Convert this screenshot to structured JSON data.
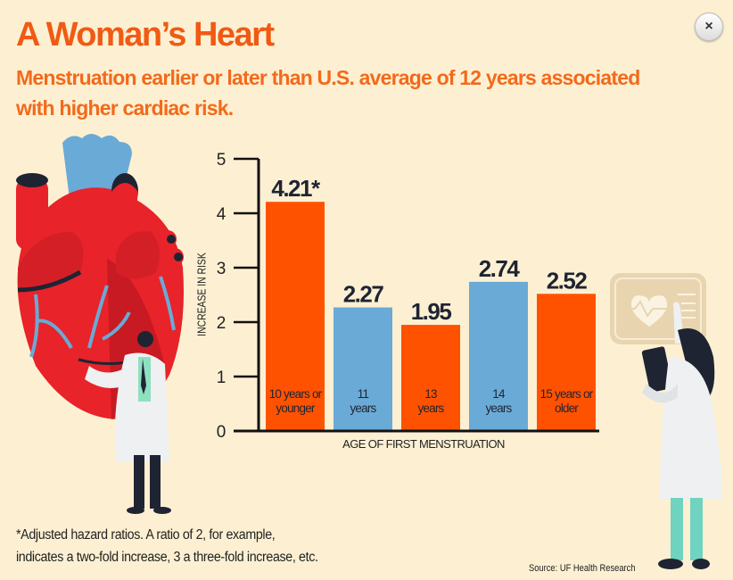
{
  "header": {
    "title": "A Woman’s Heart",
    "subtitle": "Menstruation earlier or later than U.S. average of 12 years associated with higher cardiac risk.",
    "close_label": "×"
  },
  "colors": {
    "orange": "#ff5200",
    "blue": "#6aaad6",
    "title": "#f05a14",
    "axis": "#111111",
    "value_text": "#1f2433"
  },
  "chart_data": {
    "type": "bar",
    "title": "",
    "xlabel": "AGE OF FIRST MENSTRUATION",
    "ylabel": "INCREASE IN RISK",
    "ylim": [
      0,
      5
    ],
    "yticks": [
      0,
      1,
      2,
      3,
      4,
      5
    ],
    "grid": false,
    "categories": [
      "10 years or younger",
      "11 years",
      "13 years",
      "14 years",
      "15 years or older"
    ],
    "category_lines": [
      [
        "10 years or",
        "younger"
      ],
      [
        "11",
        "years"
      ],
      [
        "13",
        "years"
      ],
      [
        "14",
        "years"
      ],
      [
        "15 years or",
        "older"
      ]
    ],
    "values": [
      4.21,
      2.27,
      1.95,
      2.74,
      2.52
    ],
    "data_labels": [
      "4.21*",
      "2.27",
      "1.95",
      "2.74",
      "2.52"
    ],
    "bar_colors": [
      "orange",
      "blue",
      "orange",
      "blue",
      "orange"
    ]
  },
  "footer": {
    "footnote_line1": "*Adjusted hazard ratios. A ratio of 2, for example,",
    "footnote_line2": "indicates a two-fold increase, 3 a three-fold increase, etc.",
    "source": "Source: UF Health Research"
  },
  "illustrations": {
    "left": "heart-with-doctor-illustration",
    "right": "doctor-with-heart-monitor-illustration"
  }
}
